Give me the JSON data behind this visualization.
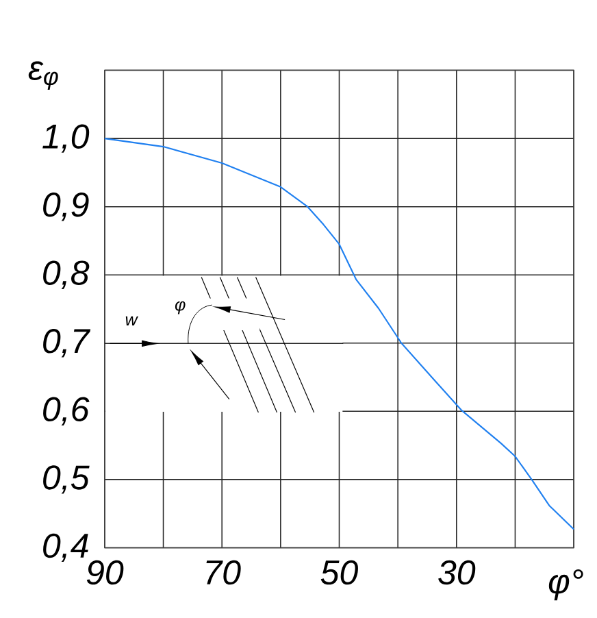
{
  "chart_data": {
    "type": "line",
    "ylabel": "ε$_{φ}$",
    "xlabel": "φ°",
    "annotations": [
      "w",
      "φ"
    ],
    "x": [
      90,
      80,
      70,
      60,
      55.4,
      52.7,
      50,
      47.1,
      43.3,
      39.4,
      33.7,
      29.2,
      22.4,
      20,
      17.1,
      14.2,
      10
    ],
    "series": [
      {
        "color": "#2080f0",
        "values": [
          1.0,
          0.988,
          0.964,
          0.929,
          0.9,
          0.874,
          0.845,
          0.793,
          0.751,
          0.7,
          0.645,
          0.602,
          0.553,
          0.534,
          0.499,
          0.462,
          0.427
        ]
      }
    ],
    "xlim": [
      90,
      10
    ],
    "xticks": [
      90,
      {
        "value": 80,
        "label": null
      },
      70,
      {
        "value": 60,
        "label": null
      },
      50,
      {
        "value": 40,
        "label": null
      },
      30,
      {
        "value": 20,
        "label": null
      },
      {
        "value": 10,
        "label": null
      }
    ],
    "ylim": [
      0.4,
      1.1
    ],
    "yticks": [
      {
        "value": 0.4,
        "label": "0,4"
      },
      {
        "value": 0.5,
        "label": "0,5"
      },
      {
        "value": 0.6,
        "label": "0,6"
      },
      {
        "value": 0.7,
        "label": "0,7"
      },
      {
        "value": 0.8,
        "label": "0,8"
      },
      {
        "value": 0.9,
        "label": "0,9"
      },
      {
        "value": 1.0,
        "label": "1,0"
      },
      {
        "value": 1.1,
        "label": null
      }
    ],
    "grid": true,
    "marker": "none",
    "line_style": "solid"
  }
}
